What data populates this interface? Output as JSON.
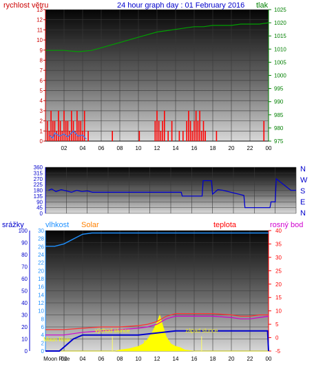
{
  "header": {
    "left_label": "rychlost větru",
    "title": "24 hour graph day : 01 February 2016",
    "right_label": "tlak"
  },
  "x_ticks": [
    "02",
    "04",
    "06",
    "08",
    "10",
    "12",
    "14",
    "16",
    "18",
    "20",
    "22",
    "00"
  ],
  "bottom_x_ticks": [
    "Moon Rise",
    "02",
    "04",
    "06",
    "08",
    "10",
    "12",
    "14",
    "16",
    "18",
    "20",
    "22",
    "00"
  ],
  "direction_letters": [
    "N",
    "W",
    "S",
    "E",
    "N"
  ],
  "colors": {
    "wind_speed": "#ff0000",
    "wind_avg": "#2a7fff",
    "pressure": "#00a000",
    "direction": "#0000cc",
    "humidity": "#1e90ff",
    "temperature": "#ff3030",
    "dewpoint": "#d000d0",
    "rain": "#0000cc",
    "solar": "#ffff00"
  },
  "chart_data": [
    {
      "type": "line",
      "title": "24 hour graph day : 01 February 2016",
      "xlabel": "",
      "ylabel_left": "rychlost větru",
      "ylabel_right": "tlak",
      "x_range": [
        0,
        24
      ],
      "y_left_ticks": [
        "0",
        "1",
        "2",
        "3",
        "4",
        "5",
        "6",
        "7",
        "8",
        "9",
        "10",
        "11",
        "12",
        "13"
      ],
      "y_right_ticks": [
        "975",
        "980",
        "985",
        "990",
        "995",
        "1000",
        "1005",
        "1010",
        "1015",
        "1020",
        "1025"
      ],
      "ylim_left": [
        0,
        13
      ],
      "ylim_right": [
        975,
        1025
      ],
      "series": [
        {
          "name": "rychlost větru",
          "axis": "left",
          "style": "spikes",
          "x": [
            0.2,
            0.4,
            0.6,
            0.8,
            1.0,
            1.2,
            1.4,
            1.6,
            1.8,
            2.0,
            2.2,
            2.4,
            2.6,
            2.8,
            3.0,
            3.2,
            3.4,
            3.6,
            3.8,
            4.0,
            4.2,
            4.6,
            7.2,
            10.1,
            11.8,
            12.0,
            12.2,
            12.4,
            12.6,
            12.8,
            13.2,
            13.6,
            14.4,
            14.8,
            15.2,
            15.4,
            15.6,
            15.8,
            16.0,
            16.2,
            16.4,
            16.6,
            16.8,
            17.0,
            17.2,
            18.4,
            23.5
          ],
          "values": [
            2,
            1,
            3,
            2,
            2,
            1,
            3,
            2,
            1,
            3,
            2,
            2,
            1,
            3,
            2,
            1,
            3,
            2,
            2,
            1,
            3,
            1,
            1,
            1,
            2,
            3,
            2,
            1,
            2,
            3,
            1,
            2,
            1,
            1,
            2,
            3,
            2,
            1,
            2,
            3,
            2,
            3,
            1,
            2,
            1,
            1,
            2
          ]
        },
        {
          "name": "",
          "axis": "left",
          "style": "line",
          "x": [
            0.4,
            0.8,
            1.0,
            1.5,
            2.0,
            2.4,
            3.0,
            3.5,
            4.0,
            4.4
          ],
          "values": [
            0.6,
            0.3,
            0.8,
            0.5,
            0.7,
            0.4,
            1.0,
            0.5,
            0.6,
            0.2
          ]
        },
        {
          "name": "tlak",
          "axis": "right",
          "style": "line",
          "x": [
            0,
            2,
            3.5,
            5,
            6,
            7,
            8,
            9,
            10,
            11,
            12,
            13,
            14,
            15,
            16,
            17,
            18,
            19,
            20,
            21,
            22,
            23,
            24
          ],
          "values": [
            1009.5,
            1009.5,
            1009,
            1009.5,
            1010.5,
            1011.5,
            1012.5,
            1013.5,
            1014.5,
            1015.5,
            1016.5,
            1017,
            1017.5,
            1018,
            1018.5,
            1018.5,
            1019,
            1019,
            1019,
            1019.5,
            1019.5,
            1019.5,
            1020
          ]
        }
      ]
    },
    {
      "type": "line",
      "title": "",
      "x_range": [
        0,
        24
      ],
      "y_ticks": [
        "0",
        "45",
        "90",
        "135",
        "180",
        "225",
        "270",
        "315",
        "360"
      ],
      "ylim": [
        0,
        360
      ],
      "series": [
        {
          "name": "",
          "x": [
            0.3,
            0.6,
            1,
            1.5,
            2,
            2.5,
            3,
            3.5,
            4,
            4.5,
            5,
            7,
            9,
            11,
            13,
            13.1,
            15,
            15.1,
            15.9,
            16,
            16.5,
            17,
            18,
            19,
            19.1,
            21.5,
            21.6,
            22,
            22.1,
            23.5,
            24
          ],
          "values": [
            180,
            190,
            170,
            185,
            175,
            165,
            180,
            170,
            175,
            165,
            165,
            165,
            165,
            165,
            165,
            135,
            135,
            255,
            255,
            150,
            185,
            180,
            160,
            140,
            45,
            45,
            90,
            90,
            270,
            180,
            180
          ]
        }
      ]
    },
    {
      "type": "line",
      "title": "",
      "x_range": [
        0,
        24
      ],
      "y_left_ticks": [
        "0",
        "10",
        "20",
        "30",
        "40",
        "50",
        "60",
        "70",
        "80",
        "90",
        "100"
      ],
      "y_left2_ticks": [
        "0",
        "2",
        "4",
        "6",
        "8",
        "10",
        "12",
        "14",
        "16",
        "18",
        "20",
        "22",
        "24",
        "26",
        "28",
        "30"
      ],
      "y_right_ticks": [
        "-5",
        "0",
        "5",
        "10",
        "15",
        "20",
        "25",
        "30",
        "35",
        "40"
      ],
      "ylim_left": [
        0,
        100
      ],
      "ylim_left2": [
        0,
        30
      ],
      "ylim_right": [
        -5,
        40
      ],
      "header_labels": [
        "srážky",
        "vlhkost",
        "Solar",
        "teplota",
        "rosný bod"
      ],
      "annotations": [
        {
          "text": "Moon Rise",
          "x": 1.2
        },
        {
          "text": "východ slunce",
          "x": 7.2
        },
        {
          "text": "Moon",
          "x": 11.3
        },
        {
          "text": "západ slunce",
          "x": 16.8
        }
      ],
      "series": [
        {
          "name": "vlhkost",
          "axis": "left",
          "x": [
            0,
            1,
            2,
            3,
            4,
            5,
            6,
            8,
            10,
            12,
            14,
            16,
            18,
            20,
            22,
            24
          ],
          "values": [
            87,
            87,
            89,
            93,
            97,
            98,
            98,
            98,
            98,
            98,
            98,
            98,
            98,
            98,
            98,
            98
          ]
        },
        {
          "name": "teplota",
          "axis": "right",
          "x": [
            0,
            2,
            4,
            6,
            8,
            10,
            11,
            12,
            13,
            14,
            15,
            16,
            18,
            20,
            21,
            22,
            23,
            24
          ],
          "values": [
            3,
            3,
            3.5,
            4,
            4,
            4.5,
            5,
            6,
            8,
            9,
            9,
            9,
            9,
            8.5,
            8,
            8,
            8.5,
            8.5
          ]
        },
        {
          "name": "rosný bod",
          "axis": "right",
          "x": [
            0,
            2,
            4,
            6,
            8,
            10,
            11,
            12,
            13,
            14,
            15,
            16,
            18,
            20,
            21,
            22,
            23,
            24
          ],
          "values": [
            1,
            1,
            2,
            2.5,
            3,
            3.5,
            4,
            5,
            7,
            8,
            8,
            8,
            8,
            7.5,
            7,
            7,
            7.5,
            8
          ]
        },
        {
          "name": "srážky",
          "axis": "left2",
          "x": [
            0,
            1,
            1.5,
            2,
            3,
            4,
            5,
            6,
            8,
            10,
            12,
            14,
            16,
            17,
            18,
            20,
            22,
            23.9,
            24
          ],
          "values": [
            0,
            0,
            0,
            1,
            3,
            4,
            4,
            4,
            4,
            4,
            4.5,
            5,
            5,
            5,
            5,
            5,
            5,
            5,
            0
          ]
        },
        {
          "name": "Solar",
          "axis": "left",
          "style": "area",
          "x": [
            0,
            7.5,
            8,
            9,
            10,
            10.5,
            11,
            11.5,
            12,
            12.3,
            12.6,
            13,
            13.5,
            14,
            14.5,
            15,
            16,
            24
          ],
          "values": [
            0,
            0,
            1,
            2,
            4,
            6,
            10,
            16,
            24,
            30,
            22,
            12,
            6,
            4,
            3,
            1,
            0,
            0
          ]
        }
      ]
    }
  ]
}
